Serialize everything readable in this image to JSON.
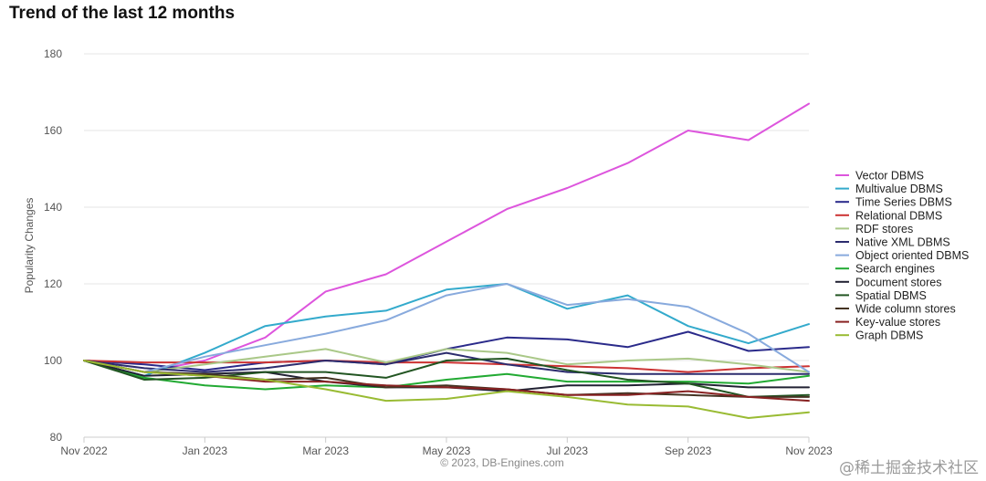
{
  "title": "Trend of the last 12 months",
  "credit": "© 2023, DB-Engines.com",
  "watermark": "@稀土掘金技术社区",
  "chart_data": {
    "type": "line",
    "ylabel": "Popularity Changes",
    "xlabel": "",
    "ylim": [
      80,
      180
    ],
    "yticks": [
      80,
      100,
      120,
      140,
      160,
      180
    ],
    "x": [
      "Nov 2022",
      "Dec 2022",
      "Jan 2023",
      "Feb 2023",
      "Mar 2023",
      "Apr 2023",
      "May 2023",
      "Jun 2023",
      "Jul 2023",
      "Aug 2023",
      "Sep 2023",
      "Oct 2023",
      "Nov 2023"
    ],
    "xtick_labels": [
      "Nov 2022",
      "Jan 2023",
      "Mar 2023",
      "May 2023",
      "Jul 2023",
      "Sep 2023",
      "Nov 2023"
    ],
    "xtick_indices": [
      0,
      2,
      4,
      6,
      8,
      10,
      12
    ],
    "grid": true,
    "legend_position": "right",
    "series": [
      {
        "name": "Vector DBMS",
        "color": "#dd55dd",
        "values": [
          100,
          97,
          100,
          106,
          118,
          122.5,
          131,
          139.5,
          145,
          151.5,
          160,
          157.5,
          167
        ]
      },
      {
        "name": "Multivalue DBMS",
        "color": "#33aacc",
        "values": [
          100,
          96,
          102,
          109,
          111.5,
          113,
          118.5,
          120,
          113.5,
          117,
          109,
          104.5,
          109.5
        ]
      },
      {
        "name": "Time Series DBMS",
        "color": "#2a2a8a",
        "values": [
          100,
          99,
          97.5,
          99.5,
          100,
          99,
          103,
          106,
          105.5,
          103.5,
          107.5,
          102.5,
          103.5
        ]
      },
      {
        "name": "Relational DBMS",
        "color": "#cc3333",
        "values": [
          100,
          99.5,
          99.5,
          99.5,
          100,
          99.5,
          99.5,
          99,
          98.5,
          98,
          97,
          98,
          98.5
        ]
      },
      {
        "name": "RDF stores",
        "color": "#aac888",
        "values": [
          100,
          97,
          99,
          101,
          103,
          99.5,
          103,
          102,
          99,
          100,
          100.5,
          99,
          97
        ]
      },
      {
        "name": "Native XML DBMS",
        "color": "#2c2c6e",
        "values": [
          100,
          98,
          97,
          98,
          100,
          99,
          102,
          99,
          97,
          96.5,
          96.5,
          96.5,
          96.5
        ]
      },
      {
        "name": "Object oriented DBMS",
        "color": "#88aadd",
        "values": [
          100,
          97,
          101,
          104,
          107,
          110.5,
          117,
          120,
          114.5,
          116,
          114,
          107,
          97
        ]
      },
      {
        "name": "Search engines",
        "color": "#22aa33",
        "values": [
          100,
          95.5,
          93.5,
          92.5,
          93.5,
          93,
          95,
          96.5,
          94.5,
          94.5,
          94.5,
          94,
          96
        ]
      },
      {
        "name": "Document stores",
        "color": "#222233",
        "values": [
          100,
          96,
          96.5,
          97,
          94.5,
          93,
          93,
          92,
          93.5,
          93.5,
          94,
          93,
          93
        ]
      },
      {
        "name": "Spatial DBMS",
        "color": "#225522",
        "values": [
          100,
          95,
          95.5,
          97,
          97,
          95.5,
          100,
          100.5,
          97.5,
          95,
          94,
          90.5,
          91
        ]
      },
      {
        "name": "Wide column stores",
        "color": "#443322",
        "values": [
          100,
          97,
          96.5,
          95,
          95.5,
          93,
          93.5,
          92.5,
          91,
          91.5,
          91,
          90.5,
          90.5
        ]
      },
      {
        "name": "Key-value stores",
        "color": "#882222",
        "values": [
          100,
          97,
          96,
          94.5,
          94.5,
          93.5,
          93,
          92.5,
          91,
          91,
          92,
          90.5,
          89.5
        ]
      },
      {
        "name": "Graph DBMS",
        "color": "#99bb33",
        "values": [
          100,
          97,
          96,
          95,
          92.5,
          89.5,
          90,
          92,
          90.5,
          88.5,
          88,
          85,
          86.5
        ]
      }
    ]
  }
}
